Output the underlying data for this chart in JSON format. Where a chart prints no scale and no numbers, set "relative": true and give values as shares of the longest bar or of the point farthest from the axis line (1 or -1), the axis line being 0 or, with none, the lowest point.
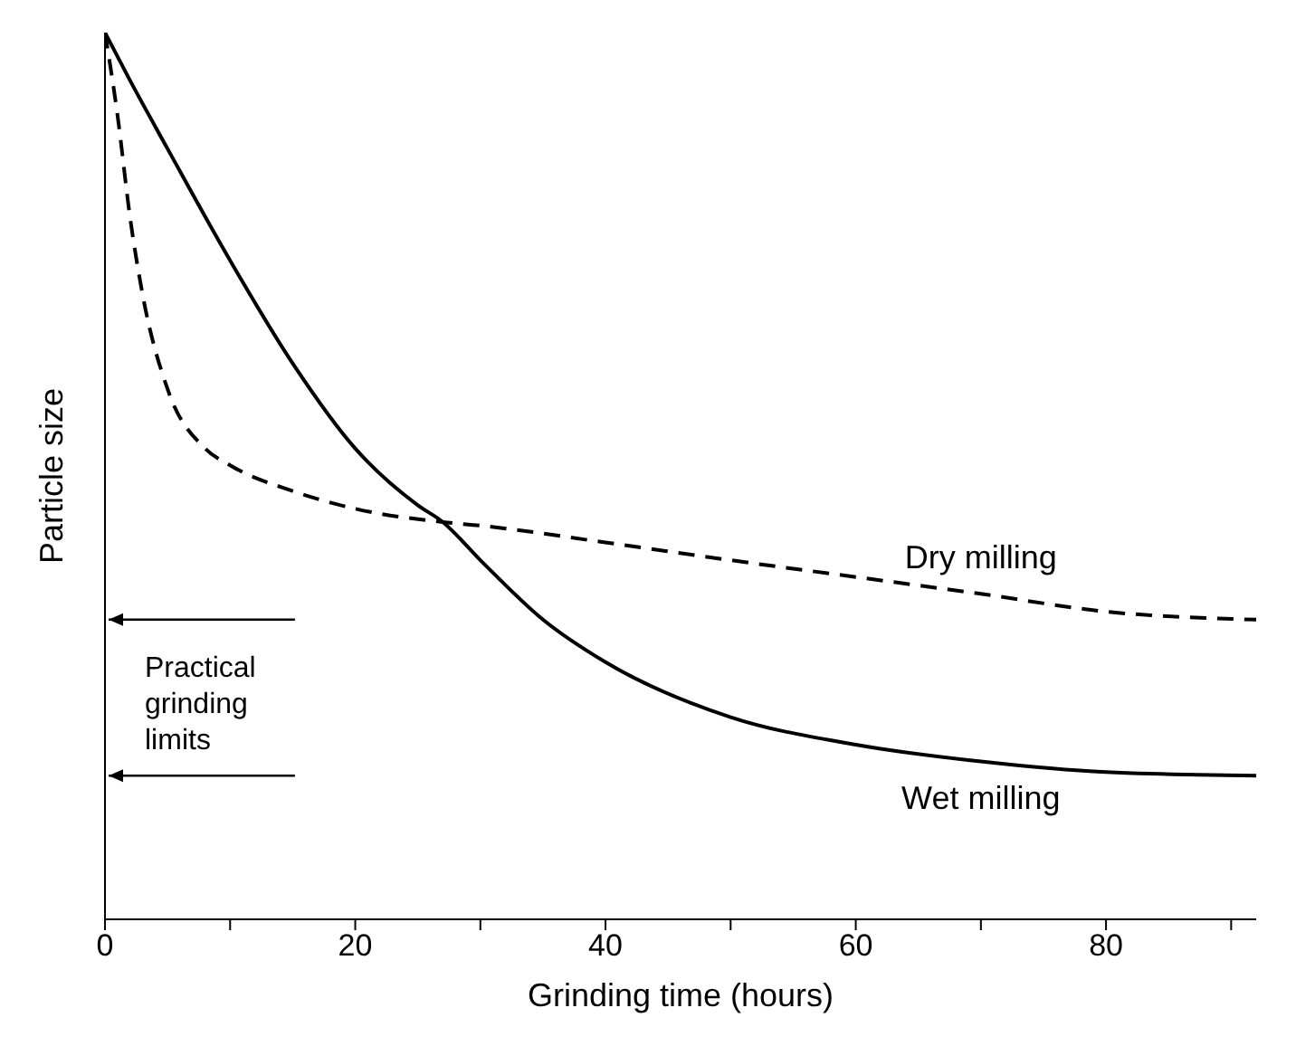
{
  "chart_data": {
    "type": "line",
    "relative": true,
    "xlabel": "Grinding time (hours)",
    "ylabel": "Particle size",
    "xlim": [
      0,
      92
    ],
    "xticks": [
      0,
      {
        "value": 10,
        "label": null
      },
      20,
      {
        "value": 30,
        "label": null
      },
      40,
      {
        "value": 50,
        "label": null
      },
      60,
      {
        "value": 70,
        "label": null
      },
      80,
      {
        "value": 90,
        "label": null
      }
    ],
    "marker": "none",
    "annotations": [
      "Practical grinding limits"
    ],
    "series": [
      {
        "name": "Dry milling",
        "color": "#000000",
        "line_style": "dashed",
        "x": [
          0,
          1,
          2,
          3,
          5,
          8,
          10,
          15,
          20,
          27,
          30,
          40,
          50,
          60,
          70,
          80,
          92
        ],
        "values": [
          1.0,
          0.907,
          0.792,
          0.705,
          0.598,
          0.531,
          0.512,
          0.483,
          0.463,
          0.448,
          0.444,
          0.425,
          0.405,
          0.386,
          0.367,
          0.347,
          0.338
        ]
      },
      {
        "name": "Wet milling",
        "color": "#000000",
        "line_style": "solid",
        "x": [
          0,
          2,
          5,
          10,
          15,
          20,
          25,
          27,
          30,
          35,
          40,
          50,
          60,
          70,
          80,
          92
        ],
        "values": [
          1.0,
          0.946,
          0.869,
          0.743,
          0.627,
          0.531,
          0.467,
          0.448,
          0.405,
          0.338,
          0.29,
          0.228,
          0.197,
          0.178,
          0.166,
          0.162
        ]
      }
    ]
  }
}
